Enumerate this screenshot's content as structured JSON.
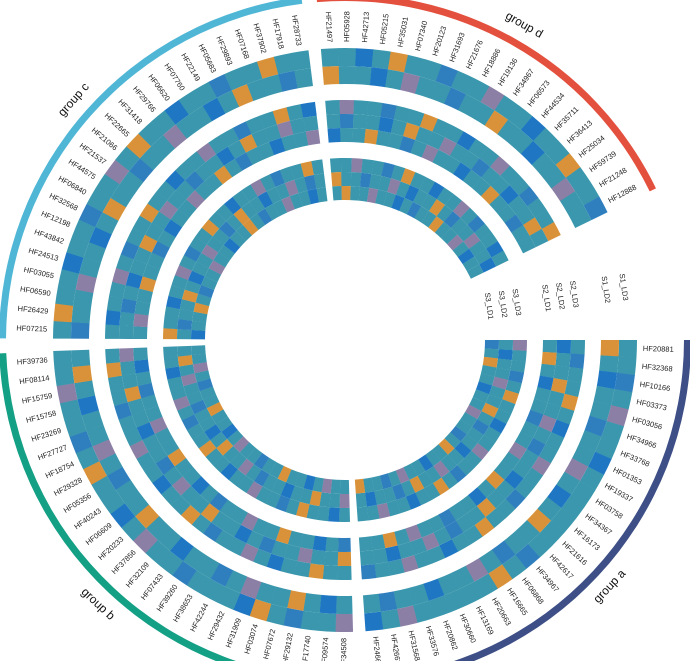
{
  "chart_data": {
    "type": "heatmap",
    "layout": "circular",
    "title": "",
    "palette": [
      "#3a97ad",
      "#3a97ad",
      "#3a97ad",
      "#2f7fbf",
      "#1f77c4",
      "#8c7fa6",
      "#d9923a",
      "#3d8f5a",
      "#2b9a8a"
    ],
    "groups": [
      {
        "name": "group a",
        "color": "#3d4f86",
        "genes": [
          "HF20881",
          "HF32368",
          "HF10166",
          "HF03373",
          "HF03056",
          "HF34966",
          "HF33768",
          "HF01353",
          "HF19337",
          "HF03758",
          "HF34367",
          "HF16173",
          "HF21616",
          "HF42617",
          "HF34967",
          "HF06868",
          "HF16665",
          "HF20663",
          "HF13169",
          "HF30660",
          "HF20862",
          "HF33576",
          "HF31568",
          "HF42663",
          "HF24666"
        ]
      },
      {
        "name": "group b",
        "color": "#13a085",
        "genes": [
          "HF34508",
          "HF09574",
          "HF17740",
          "HF29132",
          "HF07672",
          "HF03074",
          "HF31909",
          "HF29432",
          "HF42244",
          "HF38653",
          "HF39260",
          "HF07433",
          "HF32109",
          "HF37856",
          "HF20233",
          "HF06609",
          "HF40243",
          "HF05356",
          "HF29328",
          "HF18754",
          "HF27727",
          "HF23269",
          "HF15758",
          "HF15759",
          "HF08114",
          "HF39736"
        ]
      },
      {
        "name": "group c",
        "color": "#4fb6d6",
        "genes": [
          "HF07215",
          "HF26429",
          "HF06590",
          "HF03055",
          "HF24513",
          "HF43842",
          "HF12198",
          "HF32568",
          "HF06840",
          "HF44575",
          "HF21537",
          "HF21066",
          "HF22665",
          "HF31418",
          "HF29766",
          "HF06620",
          "HF07760",
          "HF22149",
          "HF05683",
          "HF29893",
          "HF07168",
          "HF37902",
          "HF17918",
          "HF28733"
        ]
      },
      {
        "name": "group d",
        "color": "#e4503e",
        "genes": [
          "HF21497",
          "HF05928",
          "HF42713",
          "HF05215",
          "HF35031",
          "HF07340",
          "HF20123",
          "HF31693",
          "HF21676",
          "HF18886",
          "HF19136",
          "HF34967",
          "HF06573",
          "HF44534",
          "HF35711",
          "HF36413",
          "HF25034",
          "HF59739",
          "HF21248",
          "HF12888"
        ]
      }
    ],
    "rings": [
      {
        "name": "ring-outer",
        "tracks": [
          "S1_LD3",
          "S1_LD2"
        ]
      },
      {
        "name": "ring-middle",
        "tracks": [
          "S2_LD3",
          "S2_LD2",
          "S2_LD1"
        ]
      },
      {
        "name": "ring-inner",
        "tracks": [
          "S3_LD3",
          "S3_LD2",
          "S3_LD1"
        ]
      }
    ],
    "track_labels": [
      "S1_LD3",
      "S1_LD2",
      "S2_LD3",
      "S2_LD2",
      "S2_LD1",
      "S3_LD3",
      "S3_LD2",
      "S3_LD1"
    ],
    "values": [
      [
        0,
        0,
        3,
        0,
        5,
        0,
        0,
        4,
        0,
        0,
        0,
        0,
        0,
        0,
        3,
        0,
        6,
        0,
        0,
        0,
        0,
        0,
        5,
        0,
        4,
        5,
        0,
        0,
        3,
        0,
        6,
        4,
        0,
        0,
        0,
        3,
        0,
        0,
        5,
        0,
        4,
        0,
        0,
        6,
        0,
        3,
        0,
        0,
        5,
        0,
        0,
        0,
        6,
        0,
        0,
        4,
        0,
        0,
        3,
        0,
        0,
        5,
        0,
        6,
        0,
        0,
        4,
        0,
        0,
        3,
        0,
        0,
        6,
        0,
        0,
        0,
        0,
        4,
        0,
        6,
        0,
        0,
        3,
        0,
        0,
        5,
        0,
        0,
        4,
        0,
        0,
        6,
        0,
        0,
        3
      ],
      [
        6,
        0,
        4,
        0,
        0,
        3,
        0,
        0,
        5,
        0,
        4,
        0,
        6,
        0,
        0,
        3,
        0,
        5,
        0,
        0,
        4,
        0,
        0,
        3,
        0,
        0,
        4,
        0,
        6,
        0,
        0,
        5,
        0,
        3,
        0,
        0,
        4,
        0,
        0,
        6,
        0,
        0,
        3,
        0,
        5,
        0,
        0,
        4,
        0,
        6,
        0,
        3,
        0,
        0,
        5,
        0,
        0,
        4,
        0,
        6,
        0,
        0,
        3,
        0,
        0,
        5,
        0,
        0,
        4,
        0,
        6,
        0,
        0,
        3,
        0,
        6,
        0,
        0,
        4,
        0,
        5,
        0,
        0,
        3,
        0,
        0,
        6,
        0,
        0,
        4,
        0,
        0,
        5,
        0,
        0
      ],
      [
        0,
        3,
        0,
        0,
        6,
        0,
        4,
        0,
        0,
        5,
        0,
        0,
        3,
        0,
        0,
        6,
        0,
        0,
        4,
        0,
        0,
        5,
        0,
        0,
        3,
        0,
        0,
        6,
        0,
        0,
        4,
        0,
        5,
        0,
        0,
        3,
        0,
        6,
        0,
        0,
        4,
        0,
        0,
        5,
        0,
        0,
        3,
        0,
        0,
        6,
        0,
        0,
        4,
        0,
        0,
        5,
        0,
        3,
        0,
        0,
        6,
        0,
        0,
        4,
        0,
        0,
        5,
        0,
        0,
        3,
        0,
        0,
        6,
        0,
        4,
        0,
        5,
        0,
        0,
        3,
        0,
        0,
        6,
        0,
        0,
        4,
        0,
        0,
        5,
        0,
        0,
        3,
        0,
        0,
        6
      ],
      [
        4,
        0,
        0,
        6,
        0,
        0,
        5,
        0,
        3,
        0,
        0,
        4,
        0,
        0,
        6,
        0,
        0,
        3,
        0,
        5,
        0,
        0,
        4,
        0,
        0,
        6,
        0,
        0,
        5,
        0,
        0,
        3,
        0,
        4,
        0,
        0,
        6,
        0,
        0,
        5,
        0,
        3,
        0,
        0,
        4,
        0,
        0,
        6,
        0,
        0,
        5,
        0,
        0,
        3,
        0,
        4,
        0,
        0,
        6,
        0,
        0,
        5,
        0,
        0,
        3,
        0,
        0,
        4,
        0,
        6,
        0,
        0,
        5,
        0,
        0,
        0,
        3,
        0,
        0,
        4,
        0,
        6,
        0,
        0,
        5,
        0,
        0,
        3,
        0,
        0,
        4,
        0,
        0,
        6,
        0
      ],
      [
        0,
        6,
        0,
        4,
        0,
        0,
        3,
        0,
        0,
        5,
        0,
        0,
        6,
        0,
        4,
        0,
        0,
        3,
        0,
        0,
        5,
        0,
        6,
        0,
        0,
        3,
        0,
        4,
        0,
        0,
        6,
        0,
        0,
        5,
        0,
        0,
        3,
        0,
        4,
        0,
        0,
        6,
        0,
        0,
        5,
        0,
        0,
        3,
        0,
        4,
        0,
        0,
        5,
        0,
        0,
        6,
        0,
        0,
        3,
        0,
        4,
        0,
        0,
        5,
        0,
        0,
        6,
        0,
        3,
        0,
        0,
        4,
        0,
        0,
        5,
        4,
        0,
        0,
        6,
        0,
        0,
        3,
        0,
        5,
        0,
        0,
        4,
        0,
        0,
        6,
        0,
        0,
        3,
        0,
        0
      ],
      [
        5,
        0,
        0,
        3,
        0,
        6,
        0,
        0,
        4,
        0,
        0,
        5,
        0,
        0,
        3,
        0,
        6,
        0,
        0,
        4,
        0,
        0,
        5,
        0,
        0,
        0,
        4,
        0,
        0,
        6,
        0,
        3,
        0,
        0,
        5,
        0,
        0,
        4,
        0,
        0,
        6,
        0,
        0,
        3,
        0,
        5,
        0,
        0,
        4,
        0,
        0,
        6,
        0,
        0,
        4,
        0,
        0,
        5,
        0,
        3,
        0,
        0,
        6,
        0,
        0,
        4,
        0,
        0,
        5,
        0,
        3,
        0,
        0,
        6,
        0,
        0,
        0,
        5,
        0,
        0,
        3,
        0,
        6,
        0,
        0,
        4,
        0,
        0,
        5,
        0,
        3,
        0,
        0,
        4,
        0
      ],
      [
        0,
        4,
        0,
        0,
        5,
        0,
        0,
        6,
        0,
        3,
        0,
        0,
        4,
        0,
        0,
        5,
        0,
        0,
        6,
        0,
        3,
        0,
        0,
        4,
        0,
        5,
        0,
        0,
        6,
        0,
        0,
        4,
        0,
        0,
        3,
        0,
        5,
        0,
        0,
        6,
        0,
        4,
        0,
        0,
        3,
        0,
        0,
        5,
        0,
        6,
        0,
        0,
        3,
        0,
        0,
        6,
        0,
        4,
        0,
        0,
        5,
        0,
        0,
        3,
        0,
        6,
        0,
        0,
        4,
        0,
        0,
        5,
        0,
        3,
        0,
        6,
        0,
        0,
        3,
        0,
        0,
        5,
        0,
        4,
        0,
        0,
        6,
        0,
        3,
        0,
        0,
        5,
        0,
        0,
        4
      ],
      [
        3,
        0,
        6,
        0,
        0,
        4,
        0,
        0,
        5,
        0,
        0,
        3,
        0,
        6,
        0,
        0,
        4,
        0,
        0,
        5,
        0,
        3,
        0,
        0,
        6,
        0,
        0,
        5,
        0,
        4,
        0,
        0,
        6,
        0,
        0,
        3,
        0,
        0,
        5,
        0,
        4,
        0,
        0,
        6,
        0,
        0,
        3,
        0,
        5,
        0,
        0,
        4,
        0,
        0,
        6,
        0,
        3,
        0,
        0,
        5,
        0,
        0,
        4,
        0,
        0,
        6,
        0,
        3,
        0,
        0,
        5,
        0,
        0,
        4,
        0,
        0,
        6,
        0,
        0,
        5,
        0,
        0,
        4,
        0,
        3,
        0,
        0,
        6,
        0,
        0,
        5,
        0,
        4,
        0,
        0
      ]
    ]
  }
}
